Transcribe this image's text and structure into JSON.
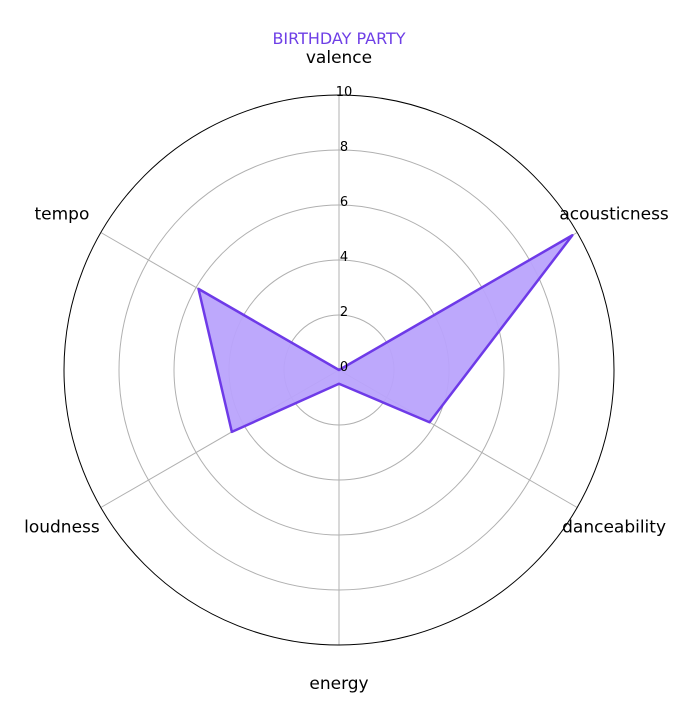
{
  "chart_data": {
    "type": "radar",
    "title": "BIRTHDAY PARTY",
    "axes": [
      "valence",
      "acousticness",
      "danceability",
      "energy",
      "loudness",
      "tempo"
    ],
    "series": [
      {
        "values": [
          0,
          9.8,
          3.8,
          0.5,
          4.5,
          5.9
        ]
      }
    ],
    "rlim": [
      0,
      10
    ],
    "rticks": [
      "0",
      "2",
      "4",
      "6",
      "8",
      "10"
    ],
    "grid": true,
    "colors": {
      "title": "#6e3fe6",
      "line": "#6e3ae8",
      "fill": "#b9a3fc",
      "grid": "#b0b0b0"
    }
  }
}
